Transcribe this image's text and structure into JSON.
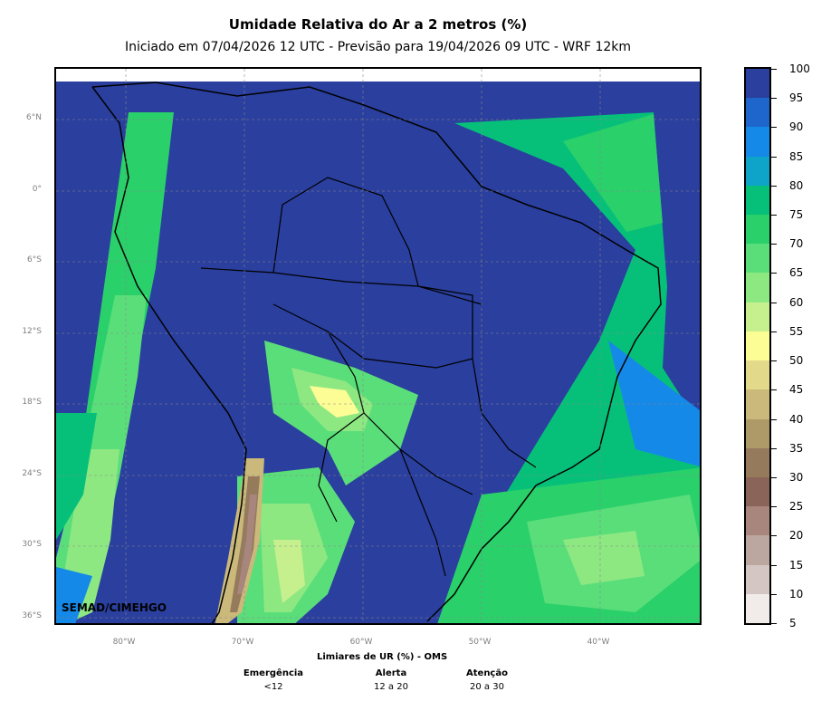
{
  "title": "Umidade Relativa do Ar a 2 metros (%)",
  "subtitle": "Iniciado em 07/04/2026 12 UTC - Previsão para 19/04/2026 09 UTC - WRF 12km",
  "watermark": "SEMAD/CIMEHGO",
  "lat_labels": [
    "6°N",
    "0°",
    "6°S",
    "12°S",
    "18°S",
    "24°S",
    "30°S",
    "36°S"
  ],
  "lon_labels": [
    "80°W",
    "70°W",
    "60°W",
    "50°W",
    "40°W"
  ],
  "colorbar": {
    "labels": [
      "100",
      "95",
      "90",
      "85",
      "80",
      "75",
      "70",
      "65",
      "60",
      "55",
      "50",
      "45",
      "40",
      "35",
      "30",
      "25",
      "20",
      "15",
      "10",
      "5"
    ],
    "colors": [
      "#2a3f9e",
      "#1e66cc",
      "#1489e8",
      "#0ea3c8",
      "#06c07a",
      "#2ad06a",
      "#5ade7a",
      "#8ee882",
      "#c6f08e",
      "#fdfd96",
      "#e2d98a",
      "#cab97a",
      "#ad9a68",
      "#957a5c",
      "#8a6458",
      "#a8867e",
      "#bca7a0",
      "#d4c6c2",
      "#f1ecea"
    ]
  },
  "legend": {
    "title": "Limiares de UR (%) - OMS",
    "columns": [
      {
        "heading": "Emergência",
        "value": "<12"
      },
      {
        "heading": "Alerta",
        "value": "12 a 20"
      },
      {
        "heading": "Atenção",
        "value": "20 a 30"
      }
    ]
  }
}
